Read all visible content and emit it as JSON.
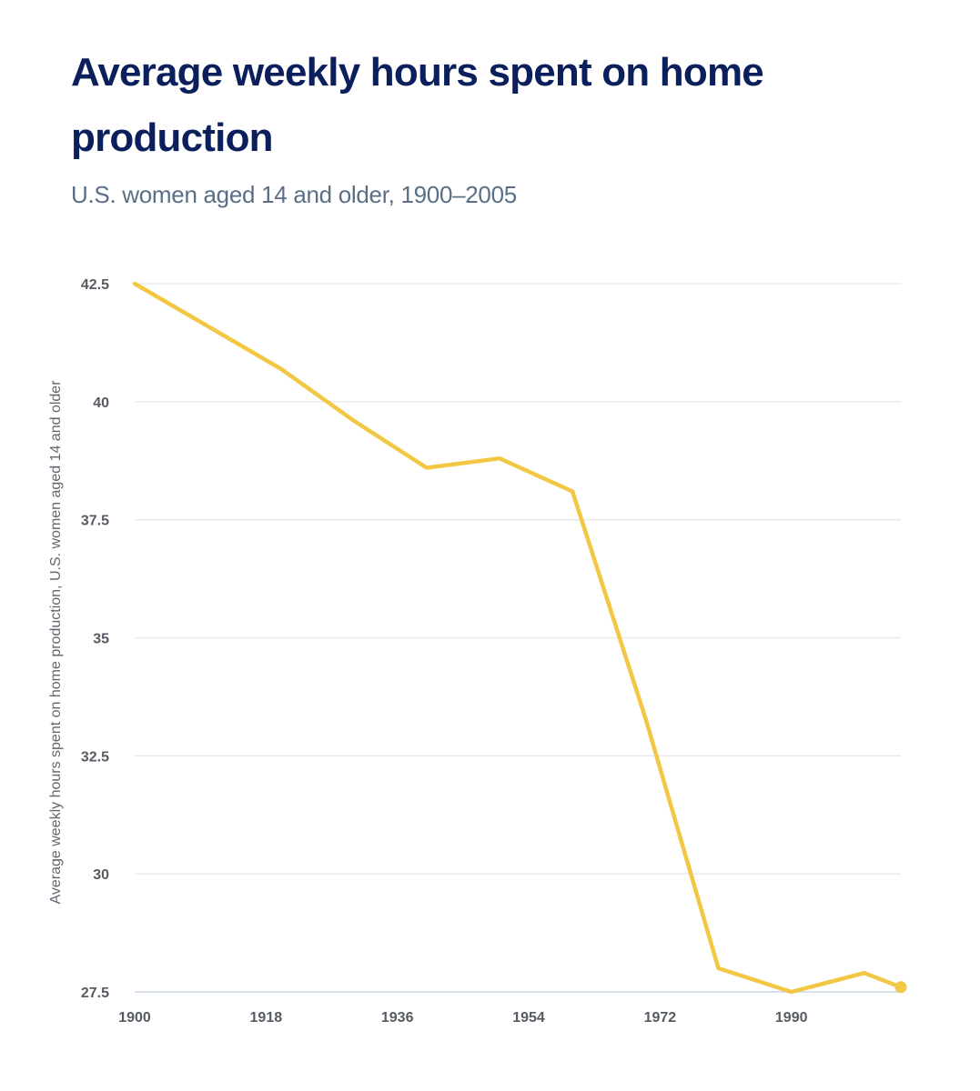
{
  "chart_data": {
    "type": "line",
    "title": "Average weekly hours spent on home production",
    "subtitle": "U.S. women aged 14 and older, 1900–2005",
    "xlabel": "",
    "ylabel": "Average weekly hours spent on home production, U.S. women aged 14 and older",
    "xlim": [
      1900,
      2005
    ],
    "ylim": [
      27.5,
      42.5
    ],
    "xticks": [
      1900,
      1918,
      1936,
      1954,
      1972,
      1990
    ],
    "yticks": [
      27.5,
      30,
      32.5,
      35,
      37.5,
      40,
      42.5
    ],
    "ytick_labels": [
      "27.5",
      "30",
      "32.5",
      "35",
      "37.5",
      "40",
      "42.5"
    ],
    "grid": true,
    "series": [
      {
        "name": "Average weekly hours spent on home production",
        "color": "#f2c744",
        "x": [
          1900,
          1910,
          1920,
          1930,
          1940,
          1950,
          1960,
          1970,
          1980,
          1990,
          2000,
          2005
        ],
        "y": [
          42.5,
          41.6,
          40.7,
          39.6,
          38.6,
          38.8,
          38.1,
          33.3,
          28.0,
          27.5,
          27.9,
          27.6
        ]
      }
    ]
  }
}
